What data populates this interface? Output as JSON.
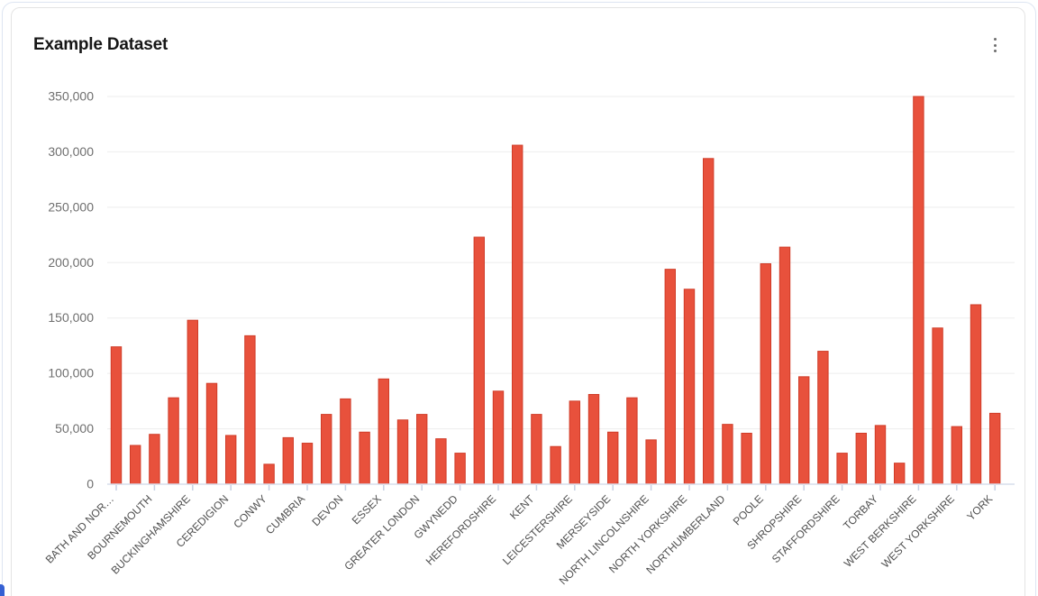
{
  "card": {
    "menu_icon": "kebab-vertical-icon"
  },
  "chart_data": {
    "type": "bar",
    "title": "Example Dataset",
    "xlabel": "",
    "ylabel": "",
    "legend": "none",
    "grid": true,
    "ylim": [
      0,
      350000
    ],
    "y_ticks": {
      "values": [
        0,
        50000,
        100000,
        150000,
        200000,
        250000,
        300000,
        350000
      ],
      "labels": [
        "0",
        "50,000",
        "100,000",
        "150,000",
        "200,000",
        "250,000",
        "300,000",
        "350,000"
      ]
    },
    "x_tick_note": "only every other bar carries a visible tick and label",
    "categories": [
      "BATH AND NOR…",
      "",
      "BOURNEMOUTH",
      "",
      "BUCKINGHAMSHIRE",
      "",
      "CEREDIGION",
      "",
      "CONWY",
      "",
      "CUMBRIA",
      "",
      "DEVON",
      "",
      "ESSEX",
      "",
      "GREATER LONDON",
      "",
      "GWYNEDD",
      "",
      "HEREFORDSHIRE",
      "",
      "KENT",
      "",
      "LEICESTERSHIRE",
      "",
      "MERSEYSIDE",
      "",
      "NORTH LINCOLNSHIRE",
      "",
      "NORTH YORKSHIRE",
      "",
      "NORTHUMBERLAND",
      "",
      "POOLE",
      "",
      "SHROPSHIRE",
      "",
      "STAFFORDSHIRE",
      "",
      "TORBAY",
      "",
      "WEST BERKSHIRE",
      "",
      "WEST YORKSHIRE",
      "",
      "YORK"
    ],
    "values": [
      124000,
      35000,
      45000,
      78000,
      148000,
      91000,
      44000,
      134000,
      18000,
      42000,
      37000,
      63000,
      77000,
      47000,
      95000,
      58000,
      63000,
      41000,
      28000,
      223000,
      84000,
      306000,
      63000,
      34000,
      75000,
      81000,
      47000,
      78000,
      40000,
      194000,
      176000,
      294000,
      54000,
      46000,
      199000,
      214000,
      97000,
      120000,
      28000,
      46000,
      53000,
      19000,
      350000,
      141000,
      52000,
      162000,
      64000
    ],
    "colors": {
      "bar_fill": "#e8513c",
      "bar_stroke": "#d03c28",
      "grid_line": "#ededed",
      "axis_line": "#d7deeb",
      "tick_mark": "#c7d1e4",
      "y_label": "#6f6f6f",
      "x_label": "#4f4f4f"
    }
  }
}
